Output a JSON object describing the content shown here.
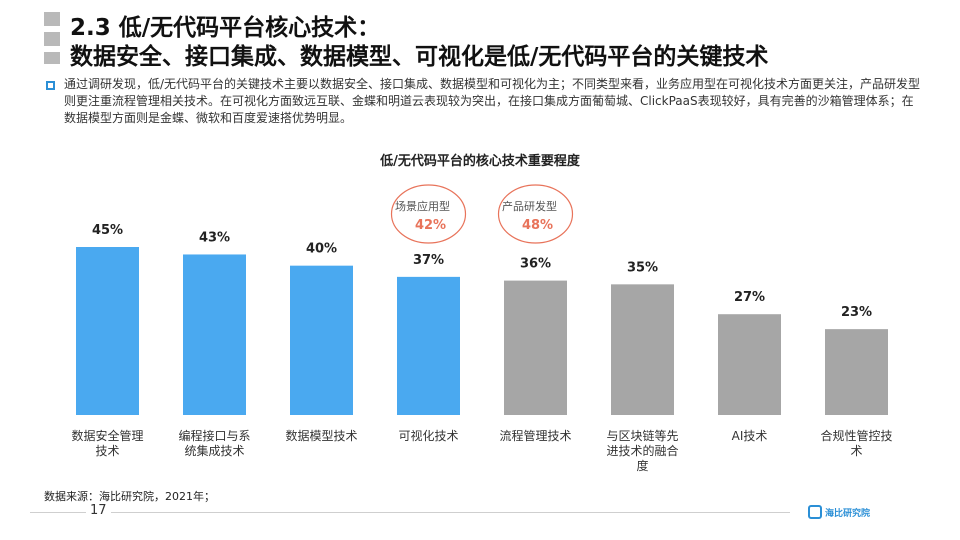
{
  "header": {
    "title_line1": "2.3 低/无代码平台核心技术：",
    "title_line2": "数据安全、接口集成、数据模型、可视化是低/无代码平台的关键技术"
  },
  "description": "通过调研发现，低/无代码平台的关键技术主要以数据安全、接口集成、数据模型和可视化为主；不同类型来看，业务应用型在可视化技术方面更关注，产品研发型则更注重流程管理相关技术。在可视化方面致远互联、金蝶和明道云表现较为突出，在接口集成方面葡萄城、ClickPaaS表现较好，具有完善的沙箱管理体系；在数据模型方面则是金蝶、微软和百度爱速搭优势明显。",
  "chart_data": {
    "type": "bar",
    "title": "低/无代码平台的核心技术重要程度",
    "categories": [
      "数据安全管理技术",
      "编程接口与系统集成技术",
      "数据模型技术",
      "可视化技术",
      "流程管理技术",
      "与区块链等先进技术的融合度",
      "AI技术",
      "合规性管控技术"
    ],
    "category_lines": [
      [
        "数据安全管理",
        "技术"
      ],
      [
        "编程接口与系",
        "统集成技术"
      ],
      [
        "数据模型技术"
      ],
      [
        "可视化技术"
      ],
      [
        "流程管理技术"
      ],
      [
        "与区块链等先",
        "进技术的融合",
        "度"
      ],
      [
        "AI技术"
      ],
      [
        "合规性管控技",
        "术"
      ]
    ],
    "values": [
      45,
      43,
      40,
      37,
      36,
      35,
      27,
      23
    ],
    "value_labels": [
      "45%",
      "43%",
      "40%",
      "37%",
      "36%",
      "35%",
      "27%",
      "23%"
    ],
    "highlight_count": 4,
    "colors": {
      "highlight": "#4aa9f0",
      "normal": "#a6a6a6",
      "annotation": "#e8735a"
    },
    "annotations": [
      {
        "category_index": 3,
        "label": "场景应用型",
        "value": "42%"
      },
      {
        "category_index": 4,
        "label": "产品研发型",
        "value": "48%"
      }
    ],
    "ylim": [
      0,
      45
    ],
    "grid": false,
    "legend": "none"
  },
  "footer": {
    "source": "数据来源：海比研究院，2021年；",
    "page": "17",
    "logo_text": "海比研究院"
  }
}
